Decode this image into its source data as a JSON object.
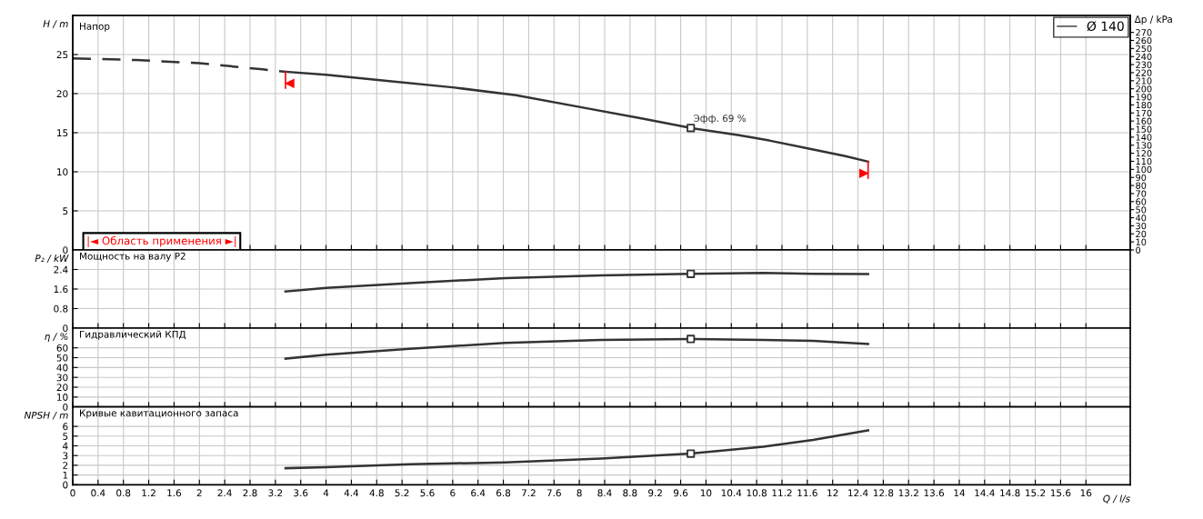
{
  "chart_data": [
    {
      "type": "line",
      "title": "Напор",
      "ylabel": "H / m",
      "y2label": "Δp / kPa",
      "xlim": [
        0,
        16.7
      ],
      "xticks": [
        0,
        0.4,
        0.8,
        1.2,
        1.6,
        2,
        2.4,
        2.8,
        3.2,
        3.6,
        4,
        4.4,
        4.8,
        5.2,
        5.6,
        6,
        6.4,
        6.8,
        7.2,
        7.6,
        8,
        8.4,
        8.8,
        9.2,
        9.6,
        10,
        10.4,
        10.8,
        11.2,
        11.6,
        12,
        12.4,
        12.8,
        13.2,
        13.6,
        14,
        14.4,
        14.8,
        15.2,
        15.6,
        16
      ],
      "ylim": [
        0,
        30
      ],
      "yticks": [
        0,
        5,
        10,
        15,
        20,
        25
      ],
      "y2lim": [
        0,
        291
      ],
      "y2ticks": [
        0,
        10,
        20,
        30,
        40,
        50,
        60,
        70,
        80,
        90,
        100,
        110,
        120,
        130,
        140,
        150,
        160,
        170,
        180,
        190,
        200,
        210,
        220,
        230,
        240,
        250,
        260,
        270
      ],
      "grid": true,
      "legend": "top right",
      "tick_labels": "y",
      "series": [
        {
          "name": "Ø 140",
          "color": "#333333",
          "x": [
            3.36,
            4,
            5,
            6,
            7,
            8,
            9,
            9.76,
            10.5,
            11,
            11.66,
            12.2,
            12.56
          ],
          "values": [
            22.8,
            22.4,
            21.6,
            20.8,
            19.8,
            18.3,
            16.8,
            15.6,
            14.7,
            14.0,
            12.9,
            12.0,
            11.3
          ]
        },
        {
          "color": "#333333",
          "line_style": "dashed",
          "x": [
            0,
            1,
            2,
            3,
            3.36
          ],
          "values": [
            24.5,
            24.3,
            23.9,
            23.1,
            22.8
          ]
        },
        {
          "type": "scatter",
          "marker": "square",
          "color": "#333333",
          "x": [
            9.76
          ],
          "values": [
            15.6
          ]
        }
      ],
      "annotations": [
        {
          "text": "Эфф. 69 %",
          "x": 9.76,
          "y": 15.6
        },
        "|◄ Область применения ►|"
      ]
    },
    {
      "type": "line",
      "title": "Мощность на валу P2",
      "ylabel": "P₂ / kW",
      "xlim": [
        0,
        16.7
      ],
      "xticks": [
        0,
        0.4,
        0.8,
        1.2,
        1.6,
        2,
        2.4,
        2.8,
        3.2,
        3.6,
        4,
        4.4,
        4.8,
        5.2,
        5.6,
        6,
        6.4,
        6.8,
        7.2,
        7.6,
        8,
        8.4,
        8.8,
        9.2,
        9.6,
        10,
        10.4,
        10.8,
        11.2,
        11.6,
        12,
        12.4,
        12.8,
        13.2,
        13.6,
        14,
        14.4,
        14.8,
        15.2,
        15.6,
        16
      ],
      "ylim": [
        0,
        3.2
      ],
      "yticks": [
        0,
        0.8,
        1.6,
        2.4
      ],
      "grid": true,
      "tick_labels": "y",
      "series": [
        {
          "color": "#333333",
          "x": [
            3.36,
            4,
            5.32,
            6.83,
            8.34,
            9.76,
            10.9,
            11.69,
            12.56
          ],
          "values": [
            1.5,
            1.65,
            1.84,
            2.05,
            2.16,
            2.22,
            2.26,
            2.22,
            2.21
          ]
        },
        {
          "type": "scatter",
          "marker": "square",
          "color": "#333333",
          "x": [
            9.76
          ],
          "values": [
            2.22
          ]
        }
      ]
    },
    {
      "type": "line",
      "title": "Гидравлический КПД",
      "ylabel": "η / %",
      "xlim": [
        0,
        16.7
      ],
      "xticks": [
        0,
        0.4,
        0.8,
        1.2,
        1.6,
        2,
        2.4,
        2.8,
        3.2,
        3.6,
        4,
        4.4,
        4.8,
        5.2,
        5.6,
        6,
        6.4,
        6.8,
        7.2,
        7.6,
        8,
        8.4,
        8.8,
        9.2,
        9.6,
        10,
        10.4,
        10.8,
        11.2,
        11.6,
        12,
        12.4,
        12.8,
        13.2,
        13.6,
        14,
        14.4,
        14.8,
        15.2,
        15.6,
        16
      ],
      "ylim": [
        0,
        80
      ],
      "yticks": [
        0,
        10,
        20,
        30,
        40,
        50,
        60
      ],
      "grid": true,
      "tick_labels": "y",
      "series": [
        {
          "color": "#333333",
          "x": [
            3.36,
            4,
            5.32,
            6.83,
            8.34,
            9.76,
            10.9,
            11.69,
            12.56
          ],
          "values": [
            49,
            53,
            59,
            65,
            68,
            69,
            68,
            67,
            64
          ]
        },
        {
          "type": "scatter",
          "marker": "square",
          "color": "#333333",
          "x": [
            9.76
          ],
          "values": [
            69
          ]
        }
      ]
    },
    {
      "type": "line",
      "title": "Кривые кавитационного запаса",
      "ylabel": "NPSH / m",
      "xlabel": "Q / l/s",
      "xlim": [
        0,
        16.7
      ],
      "xticks": [
        0,
        0.4,
        0.8,
        1.2,
        1.6,
        2,
        2.4,
        2.8,
        3.2,
        3.6,
        4,
        4.4,
        4.8,
        5.2,
        5.6,
        6,
        6.4,
        6.8,
        7.2,
        7.6,
        8,
        8.4,
        8.8,
        9.2,
        9.6,
        10,
        10.4,
        10.8,
        11.2,
        11.6,
        12,
        12.4,
        12.8,
        13.2,
        13.6,
        14,
        14.4,
        14.8,
        15.2,
        15.6,
        16
      ],
      "ylim": [
        0,
        8
      ],
      "yticks": [
        0,
        1,
        2,
        3,
        4,
        5,
        6
      ],
      "grid": true,
      "series": [
        {
          "color": "#333333",
          "x": [
            3.36,
            4,
            5.32,
            6.83,
            8.34,
            9.76,
            10.9,
            11.69,
            12.56
          ],
          "values": [
            1.7,
            1.8,
            2.1,
            2.3,
            2.7,
            3.2,
            3.9,
            4.6,
            5.6
          ]
        },
        {
          "type": "scatter",
          "marker": "square",
          "color": "#333333",
          "x": [
            9.76
          ],
          "values": [
            3.2
          ]
        }
      ]
    }
  ]
}
